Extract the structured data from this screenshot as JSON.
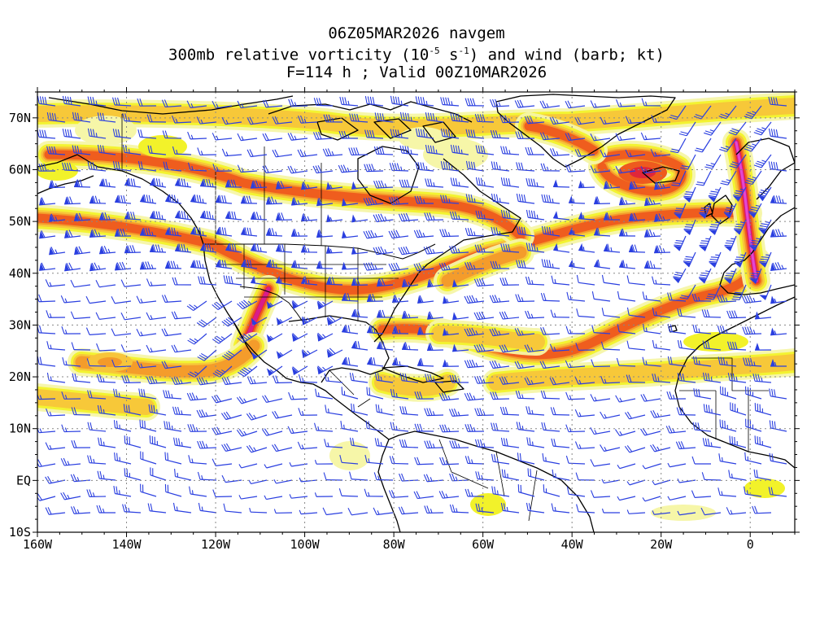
{
  "title": {
    "line1": "06Z05MAR2026 navgem",
    "line2_prefix": "300mb relative vorticity (10",
    "line2_exp1": "-5",
    "line2_mid": " s",
    "line2_exp2": "-1",
    "line2_suffix": ") and wind (barb; kt)",
    "line3": "F=114 h ; Valid 00Z10MAR2026"
  },
  "axes": {
    "lon_labels": [
      "160W",
      "140W",
      "120W",
      "100W",
      "80W",
      "60W",
      "40W",
      "20W",
      "0"
    ],
    "lat_labels": [
      "70N",
      "60N",
      "50N",
      "40N",
      "30N",
      "20N",
      "10N",
      "EQ",
      "10S"
    ],
    "lon_range": [
      -160,
      10
    ],
    "lat_range": [
      -10,
      75
    ]
  },
  "colors": {
    "barb": "#2a3fe0",
    "coast": "#000000",
    "grid": "#888888",
    "shade_levels": [
      "#f6f6a8",
      "#f2f22a",
      "#f7c53a",
      "#f39a2a",
      "#ee5a1e",
      "#e0263a",
      "#d81c8e",
      "#e44ad6"
    ]
  }
}
